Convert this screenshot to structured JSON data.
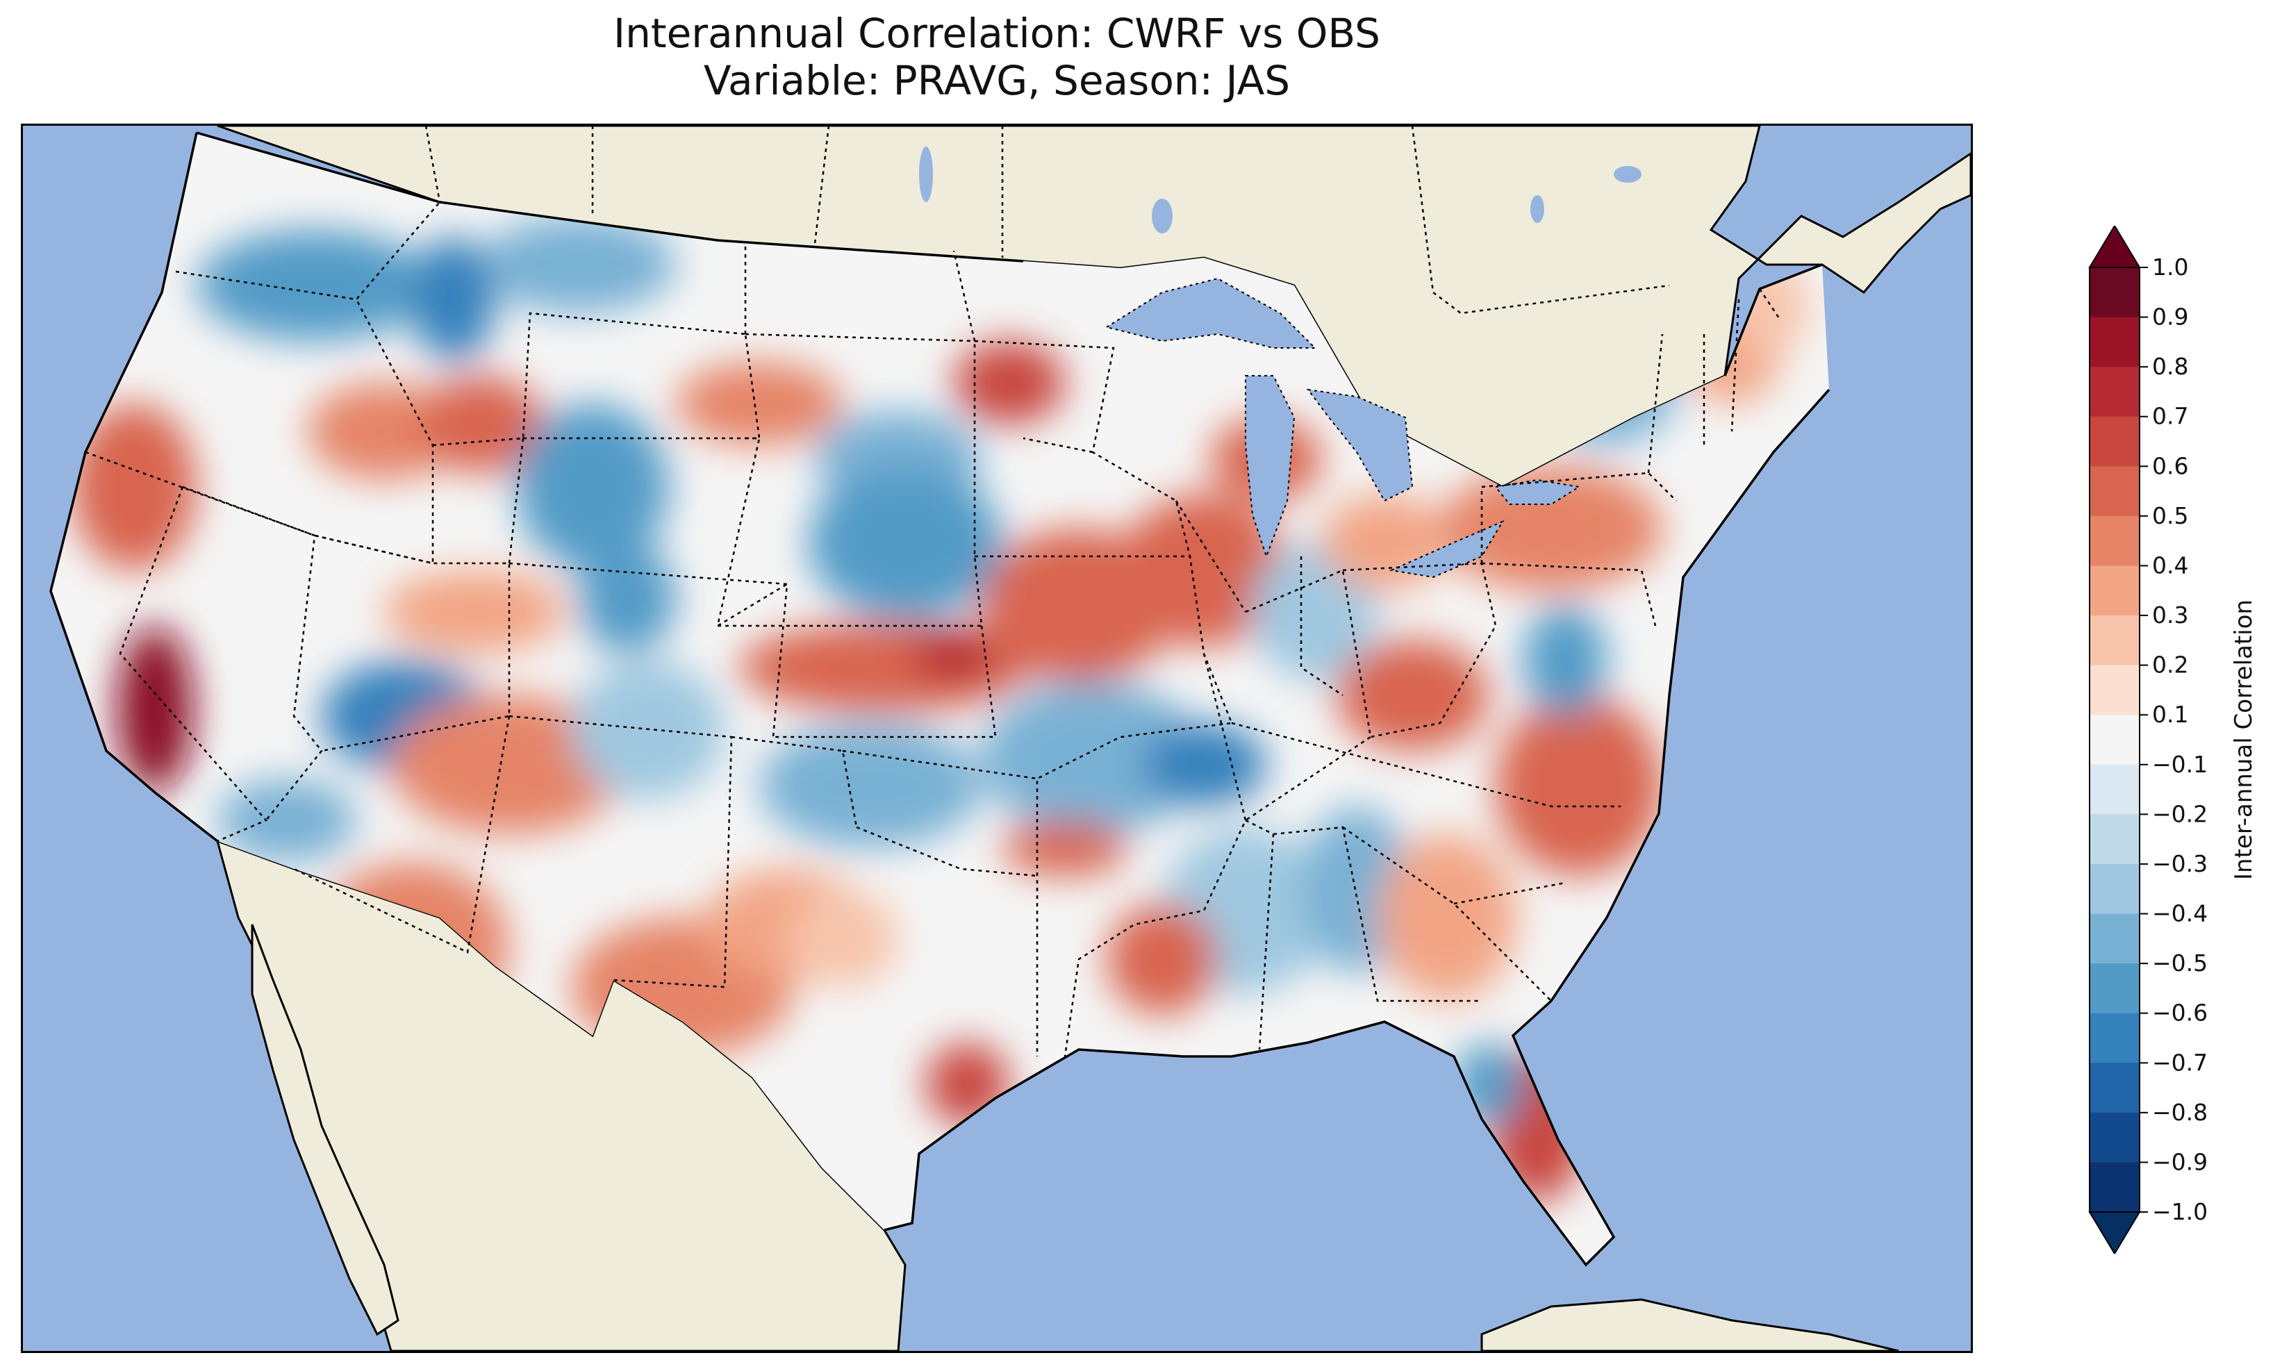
{
  "title": {
    "line1": "Interannual Correlation: CWRF vs OBS",
    "line2": "Variable: PRAVG, Season: JAS"
  },
  "colorbar": {
    "label": "Inter-annual Correlation",
    "ticks": [
      "1.0",
      "0.9",
      "0.8",
      "0.7",
      "0.6",
      "0.5",
      "0.4",
      "0.3",
      "0.2",
      "0.1",
      "−0.1",
      "−0.2",
      "−0.3",
      "−0.4",
      "−0.5",
      "−0.6",
      "−0.7",
      "−0.8",
      "−0.9",
      "−1.0"
    ],
    "colors": [
      "#6a0a22",
      "#9b1428",
      "#b52a33",
      "#c8473f",
      "#d8654f",
      "#e58467",
      "#f2a585",
      "#f7c4ab",
      "#fbe0d2",
      "#f5f5f5",
      "#dbe8f1",
      "#c0d9e9",
      "#9fc8e0",
      "#79b1d4",
      "#529bc7",
      "#3581bc",
      "#1f65a8",
      "#12498d",
      "#0a3370"
    ],
    "extend_max_color": "#67001f",
    "extend_min_color": "#053061"
  },
  "map": {
    "ocean_color": "#96b4e0",
    "land_color": "#efecdb",
    "field": "PRAVG JAS interannual correlation"
  }
}
